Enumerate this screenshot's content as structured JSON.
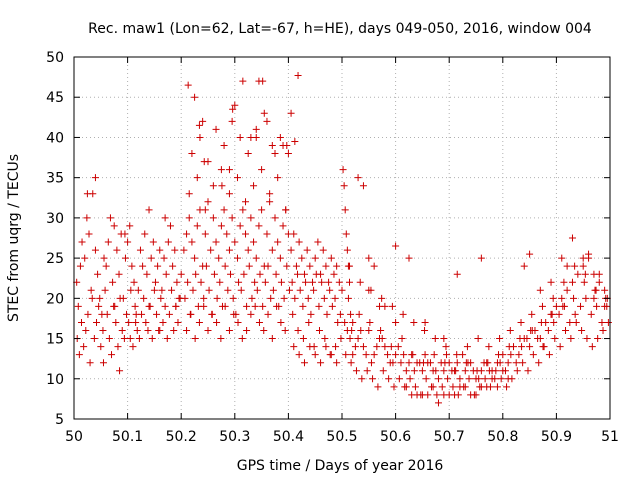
{
  "chart_data": {
    "type": "scatter",
    "title": "Rec. maw1 (Lon=62, Lat=-67, h=HE), days 049-050, 2016, window 004",
    "xlabel": "GPS time / Days of year 2016",
    "ylabel": "STEC from uqrg / TECUs",
    "xlim": [
      50,
      51
    ],
    "ylim": [
      5,
      50
    ],
    "x_ticks": [
      50,
      50.1,
      50.2,
      50.3,
      50.4,
      50.5,
      50.6,
      50.7,
      50.8,
      50.9,
      51
    ],
    "x_tick_labels": [
      "50",
      "50.1",
      "50.2",
      "50.3",
      "50.4",
      "50.5",
      "50.6",
      "50.7",
      "50.8",
      "50.9",
      "51"
    ],
    "y_ticks": [
      5,
      10,
      15,
      20,
      25,
      30,
      35,
      40,
      45,
      50
    ],
    "y_tick_labels": [
      "5",
      "10",
      "15",
      "20",
      "25",
      "30",
      "35",
      "40",
      "45",
      "50"
    ],
    "grid": true,
    "legend": "none",
    "marker": "plus",
    "color": "#cc0000",
    "series": [
      {
        "x": [
          50.005,
          50.008,
          50.012,
          50.015,
          50.02,
          50.024,
          50.028,
          50.032,
          50.035,
          50.04,
          50.044,
          50.048,
          50.052,
          50.056,
          50.06,
          50.064,
          50.068,
          50.072,
          50.076,
          50.08,
          50.084,
          50.088,
          50.092,
          50.096,
          50.1,
          50.104,
          50.108,
          50.112,
          50.116,
          50.12,
          50.124,
          50.128,
          50.132,
          50.136,
          50.14,
          50.144,
          50.148,
          50.152,
          50.156,
          50.16,
          50.164,
          50.168,
          50.172,
          50.176,
          50.18,
          50.184,
          50.188,
          50.192,
          50.196,
          50.2,
          50.006,
          50.01,
          50.014,
          50.018,
          50.022,
          50.026,
          50.03,
          50.034,
          50.038,
          50.042,
          50.046,
          50.05,
          50.054,
          50.058,
          50.062,
          50.066,
          50.07,
          50.074,
          50.078,
          50.082,
          50.086,
          50.09,
          50.094,
          50.098,
          50.102,
          50.106,
          50.11,
          50.114,
          50.118,
          50.122,
          50.126,
          50.13,
          50.134,
          50.138,
          50.142,
          50.146,
          50.15,
          50.154,
          50.158,
          50.162,
          50.166,
          50.17,
          50.174,
          50.178,
          50.182,
          50.186,
          50.19,
          50.194,
          50.198,
          50.055,
          50.085,
          50.105,
          50.115,
          50.16,
          50.19,
          50.025,
          50.04,
          50.075,
          50.095,
          50.14,
          50.17,
          50.205,
          50.21,
          50.215,
          50.22,
          50.225,
          50.23,
          50.235,
          50.24,
          50.245,
          50.25,
          50.255,
          50.26,
          50.265,
          50.27,
          50.275,
          50.28,
          50.285,
          50.29,
          50.295,
          50.3,
          50.305,
          50.31,
          50.315,
          50.32,
          50.325,
          50.33,
          50.335,
          50.34,
          50.345,
          50.35,
          50.355,
          50.36,
          50.365,
          50.37,
          50.375,
          50.38,
          50.385,
          50.39,
          50.395,
          50.4,
          50.207,
          50.212,
          50.217,
          50.222,
          50.227,
          50.232,
          50.237,
          50.242,
          50.247,
          50.252,
          50.257,
          50.262,
          50.267,
          50.272,
          50.277,
          50.282,
          50.287,
          50.292,
          50.297,
          50.302,
          50.307,
          50.312,
          50.317,
          50.322,
          50.327,
          50.332,
          50.337,
          50.342,
          50.347,
          50.352,
          50.357,
          50.362,
          50.367,
          50.372,
          50.377,
          50.382,
          50.387,
          50.392,
          50.397,
          50.402,
          50.21,
          50.218,
          50.226,
          50.234,
          50.242,
          50.25,
          50.258,
          50.266,
          50.274,
          50.282,
          50.29,
          50.298,
          50.306,
          50.314,
          50.322,
          50.33,
          50.338,
          50.346,
          50.354,
          50.362,
          50.37,
          50.378,
          50.386,
          50.394,
          50.215,
          50.23,
          50.245,
          50.26,
          50.275,
          50.29,
          50.305,
          50.32,
          50.335,
          50.35,
          50.365,
          50.38,
          50.395,
          50.22,
          50.235,
          50.25,
          50.265,
          50.28,
          50.295,
          50.31,
          50.325,
          50.34,
          50.355,
          50.37,
          50.385,
          50.4,
          50.225,
          50.24,
          50.3,
          50.315,
          50.33,
          50.345,
          50.36,
          50.39,
          50.213,
          50.234,
          50.243,
          50.276,
          50.29,
          50.296,
          50.34,
          50.352,
          50.375,
          50.397,
          50.405,
          50.412,
          50.418,
          50.405,
          50.41,
          50.415,
          50.42,
          50.425,
          50.43,
          50.435,
          50.44,
          50.445,
          50.45,
          50.455,
          50.46,
          50.465,
          50.47,
          50.475,
          50.48,
          50.485,
          50.49,
          50.495,
          50.5,
          50.407,
          50.412,
          50.417,
          50.422,
          50.427,
          50.432,
          50.437,
          50.442,
          50.447,
          50.452,
          50.457,
          50.462,
          50.467,
          50.472,
          50.477,
          50.482,
          50.487,
          50.492,
          50.497,
          50.408,
          50.418,
          50.428,
          50.438,
          50.448,
          50.458,
          50.468,
          50.478,
          50.488,
          50.498,
          50.41,
          50.42,
          50.43,
          50.44,
          50.45,
          50.46,
          50.47,
          50.48,
          50.49,
          50.502,
          50.504,
          50.506,
          50.508,
          50.51,
          50.512,
          50.514,
          50.516,
          50.518,
          50.52,
          50.53,
          50.54,
          50.55,
          50.56,
          50.57,
          50.505,
          50.515,
          50.525,
          50.535,
          50.545,
          50.555,
          50.565,
          50.575,
          50.585,
          50.595,
          50.605,
          50.615,
          50.625,
          50.635,
          50.645,
          50.655,
          50.665,
          50.675,
          50.685,
          50.695,
          50.705,
          50.715,
          50.725,
          50.735,
          50.745,
          50.755,
          50.765,
          50.775,
          50.785,
          50.795,
          50.805,
          50.815,
          50.825,
          50.835,
          50.845,
          50.855,
          50.865,
          50.875,
          50.885,
          50.895,
          50.905,
          50.915,
          50.925,
          50.935,
          50.945,
          50.955,
          50.965,
          50.975,
          50.985,
          50.995,
          50.507,
          50.517,
          50.527,
          50.537,
          50.547,
          50.557,
          50.567,
          50.577,
          50.587,
          50.597,
          50.607,
          50.617,
          50.627,
          50.637,
          50.647,
          50.657,
          50.667,
          50.677,
          50.687,
          50.697,
          50.707,
          50.717,
          50.727,
          50.737,
          50.747,
          50.757,
          50.767,
          50.777,
          50.787,
          50.797,
          50.807,
          50.817,
          50.827,
          50.837,
          50.847,
          50.857,
          50.867,
          50.877,
          50.887,
          50.897,
          50.907,
          50.917,
          50.927,
          50.937,
          50.947,
          50.957,
          50.967,
          50.977,
          50.987,
          50.997,
          50.51,
          50.52,
          50.53,
          50.54,
          50.55,
          50.56,
          50.57,
          50.58,
          50.59,
          50.6,
          50.61,
          50.62,
          50.63,
          50.64,
          50.65,
          50.66,
          50.67,
          50.68,
          50.69,
          50.7,
          50.71,
          50.72,
          50.73,
          50.74,
          50.75,
          50.76,
          50.77,
          50.78,
          50.79,
          50.8,
          50.81,
          50.82,
          50.83,
          50.84,
          50.85,
          50.86,
          50.87,
          50.88,
          50.89,
          50.9,
          50.91,
          50.92,
          50.93,
          50.94,
          50.95,
          50.96,
          50.97,
          50.98,
          50.99,
          50.512,
          50.532,
          50.552,
          50.572,
          50.592,
          50.612,
          50.632,
          50.652,
          50.672,
          50.692,
          50.712,
          50.732,
          50.752,
          50.772,
          50.792,
          50.812,
          50.832,
          50.852,
          50.872,
          50.892,
          50.912,
          50.932,
          50.952,
          50.972,
          50.992,
          50.514,
          50.534,
          50.554,
          50.574,
          50.594,
          50.614,
          50.634,
          50.654,
          50.674,
          50.694,
          50.714,
          50.734,
          50.754,
          50.774,
          50.794,
          50.814,
          50.834,
          50.854,
          50.874,
          50.894,
          50.914,
          50.934,
          50.954,
          50.974,
          50.994,
          50.62,
          50.64,
          50.66,
          50.68,
          50.7,
          50.72,
          50.74,
          50.76,
          50.78,
          50.8,
          50.63,
          50.65,
          50.67,
          50.69,
          50.71,
          50.73,
          50.75,
          50.77,
          50.79,
          50.81,
          50.6,
          50.625,
          50.655,
          50.69,
          50.715,
          50.76,
          50.85,
          50.87,
          50.91,
          50.93,
          50.95,
          50.97,
          50.99,
          50.84,
          50.89,
          50.92,
          50.96,
          50.98,
          50.55,
          50.58,
          50.6
        ],
        "y": [
          22,
          19,
          24,
          27,
          25,
          30,
          28,
          21,
          33,
          26,
          23,
          20,
          18,
          25,
          24,
          27,
          30,
          22,
          19,
          26,
          23,
          28,
          20,
          25,
          27,
          29,
          24,
          22,
          18,
          21,
          26,
          24,
          28,
          23,
          19,
          25,
          27,
          22,
          24,
          26,
          21,
          25,
          23,
          27,
          29,
          24,
          26,
          22,
          20,
          23,
          15,
          13,
          17,
          14,
          16,
          18,
          12,
          20,
          15,
          17,
          19,
          14,
          16,
          21,
          18,
          15,
          13,
          19,
          17,
          14,
          20,
          16,
          15,
          18,
          17,
          21,
          14,
          19,
          16,
          15,
          18,
          20,
          17,
          16,
          19,
          15,
          21,
          18,
          16,
          20,
          17,
          19,
          15,
          18,
          21,
          16,
          19,
          17,
          20,
          12,
          11,
          15,
          17,
          16,
          19,
          33,
          35,
          29,
          28,
          31,
          30,
          26,
          28,
          30,
          27,
          25,
          29,
          31,
          24,
          28,
          32,
          26,
          30,
          27,
          25,
          29,
          31,
          28,
          26,
          30,
          27,
          25,
          29,
          31,
          28,
          26,
          30,
          27,
          25,
          29,
          31,
          24,
          28,
          32,
          26,
          30,
          27,
          25,
          29,
          31,
          28,
          20,
          22,
          18,
          21,
          23,
          19,
          22,
          20,
          24,
          21,
          18,
          23,
          20,
          22,
          19,
          24,
          21,
          23,
          20,
          18,
          22,
          21,
          23,
          19,
          24,
          20,
          22,
          21,
          23,
          19,
          22,
          24,
          20,
          21,
          23,
          19,
          22,
          20,
          24,
          21,
          16,
          18,
          15,
          17,
          19,
          16,
          18,
          17,
          15,
          19,
          16,
          18,
          17,
          15,
          16,
          18,
          19,
          17,
          16,
          18,
          15,
          19,
          17,
          16,
          33,
          35,
          31,
          34,
          36,
          33,
          35,
          32,
          34,
          36,
          33,
          35,
          31,
          38,
          40,
          37,
          41,
          39,
          42,
          40,
          38,
          41,
          43,
          39,
          40,
          38,
          45,
          42,
          44,
          47,
          40,
          47,
          42,
          39,
          46.5,
          41.5,
          37,
          34,
          36,
          43.5,
          40,
          47,
          38,
          39,
          43,
          39.5,
          47.7,
          26,
          28,
          24,
          27,
          25,
          23,
          26,
          24,
          22,
          25,
          27,
          23,
          26,
          24,
          22,
          25,
          23,
          24,
          22,
          21,
          22,
          20,
          23,
          21,
          19,
          22,
          20,
          18,
          21,
          23,
          19,
          22,
          20,
          18,
          21,
          19,
          20,
          17,
          18,
          18,
          16,
          15,
          17,
          14,
          16,
          15,
          13,
          14,
          15,
          14,
          13,
          12,
          14,
          13,
          12,
          14,
          13,
          12,
          36,
          34,
          31,
          28,
          26,
          24,
          22,
          18,
          16,
          13,
          35,
          34,
          25,
          24,
          19,
          17,
          15,
          14,
          16,
          13,
          12,
          14,
          15,
          13,
          12,
          14,
          13,
          12,
          11,
          12,
          13,
          12,
          11,
          12,
          13,
          11,
          12,
          13,
          12,
          11,
          10,
          12,
          11,
          10,
          12,
          11,
          13,
          12,
          14,
          15,
          16,
          15,
          14,
          16,
          17,
          18,
          19,
          17,
          18,
          19,
          20,
          18,
          19,
          17,
          20,
          13,
          12,
          11,
          10,
          11,
          10,
          9,
          11,
          10,
          9,
          10,
          9,
          10,
          9,
          8,
          10,
          9,
          8,
          9,
          10,
          9,
          8,
          9,
          10,
          8,
          9,
          10,
          9,
          11,
          10,
          9,
          10,
          11,
          12,
          11,
          13,
          12,
          14,
          13,
          15,
          14,
          16,
          15,
          17,
          16,
          15,
          14,
          15,
          16,
          17,
          16,
          17,
          15,
          14,
          16,
          13,
          15,
          14,
          12,
          13,
          12,
          11,
          13,
          12,
          11,
          12,
          11,
          10,
          11,
          12,
          11,
          10,
          11,
          12,
          10,
          11,
          12,
          11,
          12,
          13,
          12,
          14,
          13,
          15,
          14,
          16,
          15,
          17,
          18,
          19,
          20,
          21,
          22,
          23,
          24,
          25,
          23,
          22,
          21,
          20,
          18,
          17,
          16,
          14,
          15,
          13,
          12,
          13,
          12,
          11,
          12,
          11,
          12,
          13,
          14,
          15,
          16,
          17,
          18,
          19,
          20,
          22,
          21,
          20,
          24,
          22,
          21,
          20,
          19,
          18,
          17,
          16,
          15,
          14,
          13,
          14,
          15,
          14,
          15,
          16,
          17,
          18,
          19,
          20,
          22,
          24,
          23,
          21,
          19,
          9,
          8,
          8,
          7,
          8,
          9,
          8,
          9,
          10,
          11,
          8,
          8,
          9,
          8,
          8,
          9,
          8,
          9,
          9,
          10,
          26.5,
          25,
          17,
          15,
          23,
          25,
          25.5,
          21,
          25,
          27.5,
          25,
          20,
          19,
          24,
          22,
          24,
          25.5,
          23,
          21,
          19,
          17
        ]
      }
    ]
  }
}
